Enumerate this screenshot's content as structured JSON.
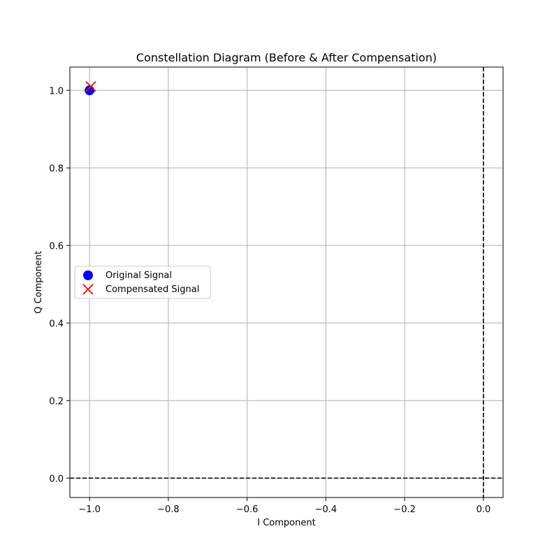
{
  "chart_data": {
    "type": "scatter",
    "title": "Constellation Diagram (Before & After Compensation)",
    "xlabel": "I Component",
    "ylabel": "Q Component",
    "xlim": [
      -1.05,
      0.05
    ],
    "ylim": [
      -0.05,
      1.06
    ],
    "xticks": [
      -1.0,
      -0.8,
      -0.6,
      -0.4,
      -0.2,
      0.0
    ],
    "yticks": [
      0.0,
      0.2,
      0.4,
      0.6,
      0.8,
      1.0
    ],
    "xtick_labels": [
      "−1.0",
      "−0.8",
      "−0.6",
      "−0.4",
      "−0.2",
      "0.0"
    ],
    "ytick_labels": [
      "0.0",
      "0.2",
      "0.4",
      "0.6",
      "0.8",
      "1.0"
    ],
    "grid": true,
    "reference_lines": [
      {
        "orientation": "horizontal",
        "value": 0.0,
        "style": "dashed",
        "color": "#000000"
      },
      {
        "orientation": "vertical",
        "value": 0.0,
        "style": "dashed",
        "color": "#000000"
      }
    ],
    "legend_position": "center-left",
    "series": [
      {
        "name": "Original Signal",
        "marker": "circle",
        "color": "#0000ff",
        "points": [
          {
            "x": -1.0,
            "y": 1.0
          }
        ]
      },
      {
        "name": "Compensated Signal",
        "marker": "x",
        "color": "#ff0000",
        "points": [
          {
            "x": -0.997,
            "y": 1.01
          }
        ]
      }
    ]
  }
}
